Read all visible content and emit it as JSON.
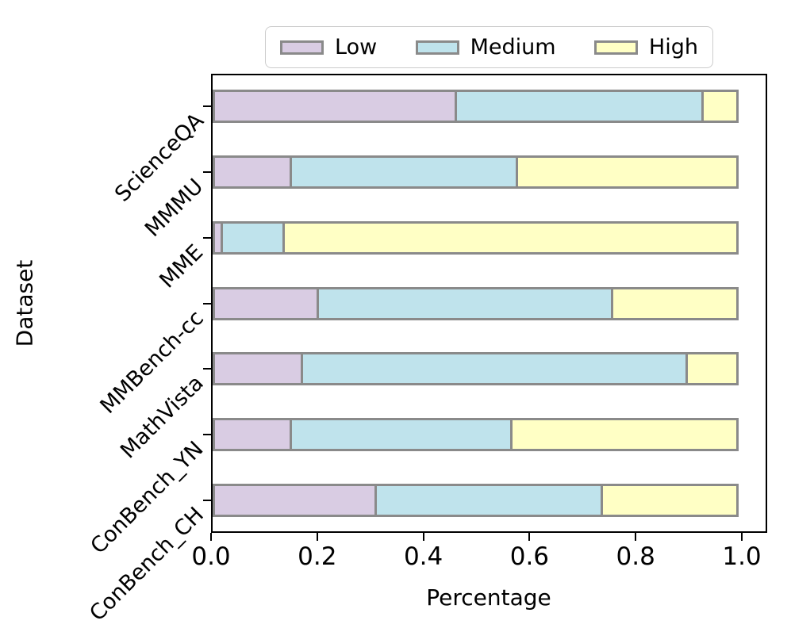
{
  "chart_data": {
    "type": "bar",
    "orientation": "horizontal",
    "stacked": true,
    "title": "",
    "xlabel": "Percentage",
    "ylabel": "Dataset",
    "categories": [
      "ScienceQA",
      "MMMU",
      "MME",
      "MMBench-cc",
      "MathVista",
      "ConBench_YN",
      "ConBench_CH"
    ],
    "series": [
      {
        "name": "Low",
        "color": "#d9cce3",
        "values": [
          0.46,
          0.15,
          0.02,
          0.2,
          0.17,
          0.15,
          0.31
        ]
      },
      {
        "name": "Medium",
        "color": "#bfe3ec",
        "values": [
          0.47,
          0.43,
          0.12,
          0.56,
          0.73,
          0.42,
          0.43
        ]
      },
      {
        "name": "High",
        "color": "#ffffc5",
        "values": [
          0.07,
          0.42,
          0.86,
          0.24,
          0.1,
          0.43,
          0.26
        ]
      }
    ],
    "xlim": [
      0.0,
      1.05
    ],
    "xticks": [
      "0.0",
      "0.2",
      "0.4",
      "0.6",
      "0.8",
      "1.0"
    ],
    "xtick_values": [
      0.0,
      0.2,
      0.4,
      0.6,
      0.8,
      1.0
    ],
    "bar_edge_color": "#8a8a8a",
    "axis_color": "#000000",
    "legend_position": "top-center",
    "legend_border_color": "#cccccc",
    "grid": false
  }
}
